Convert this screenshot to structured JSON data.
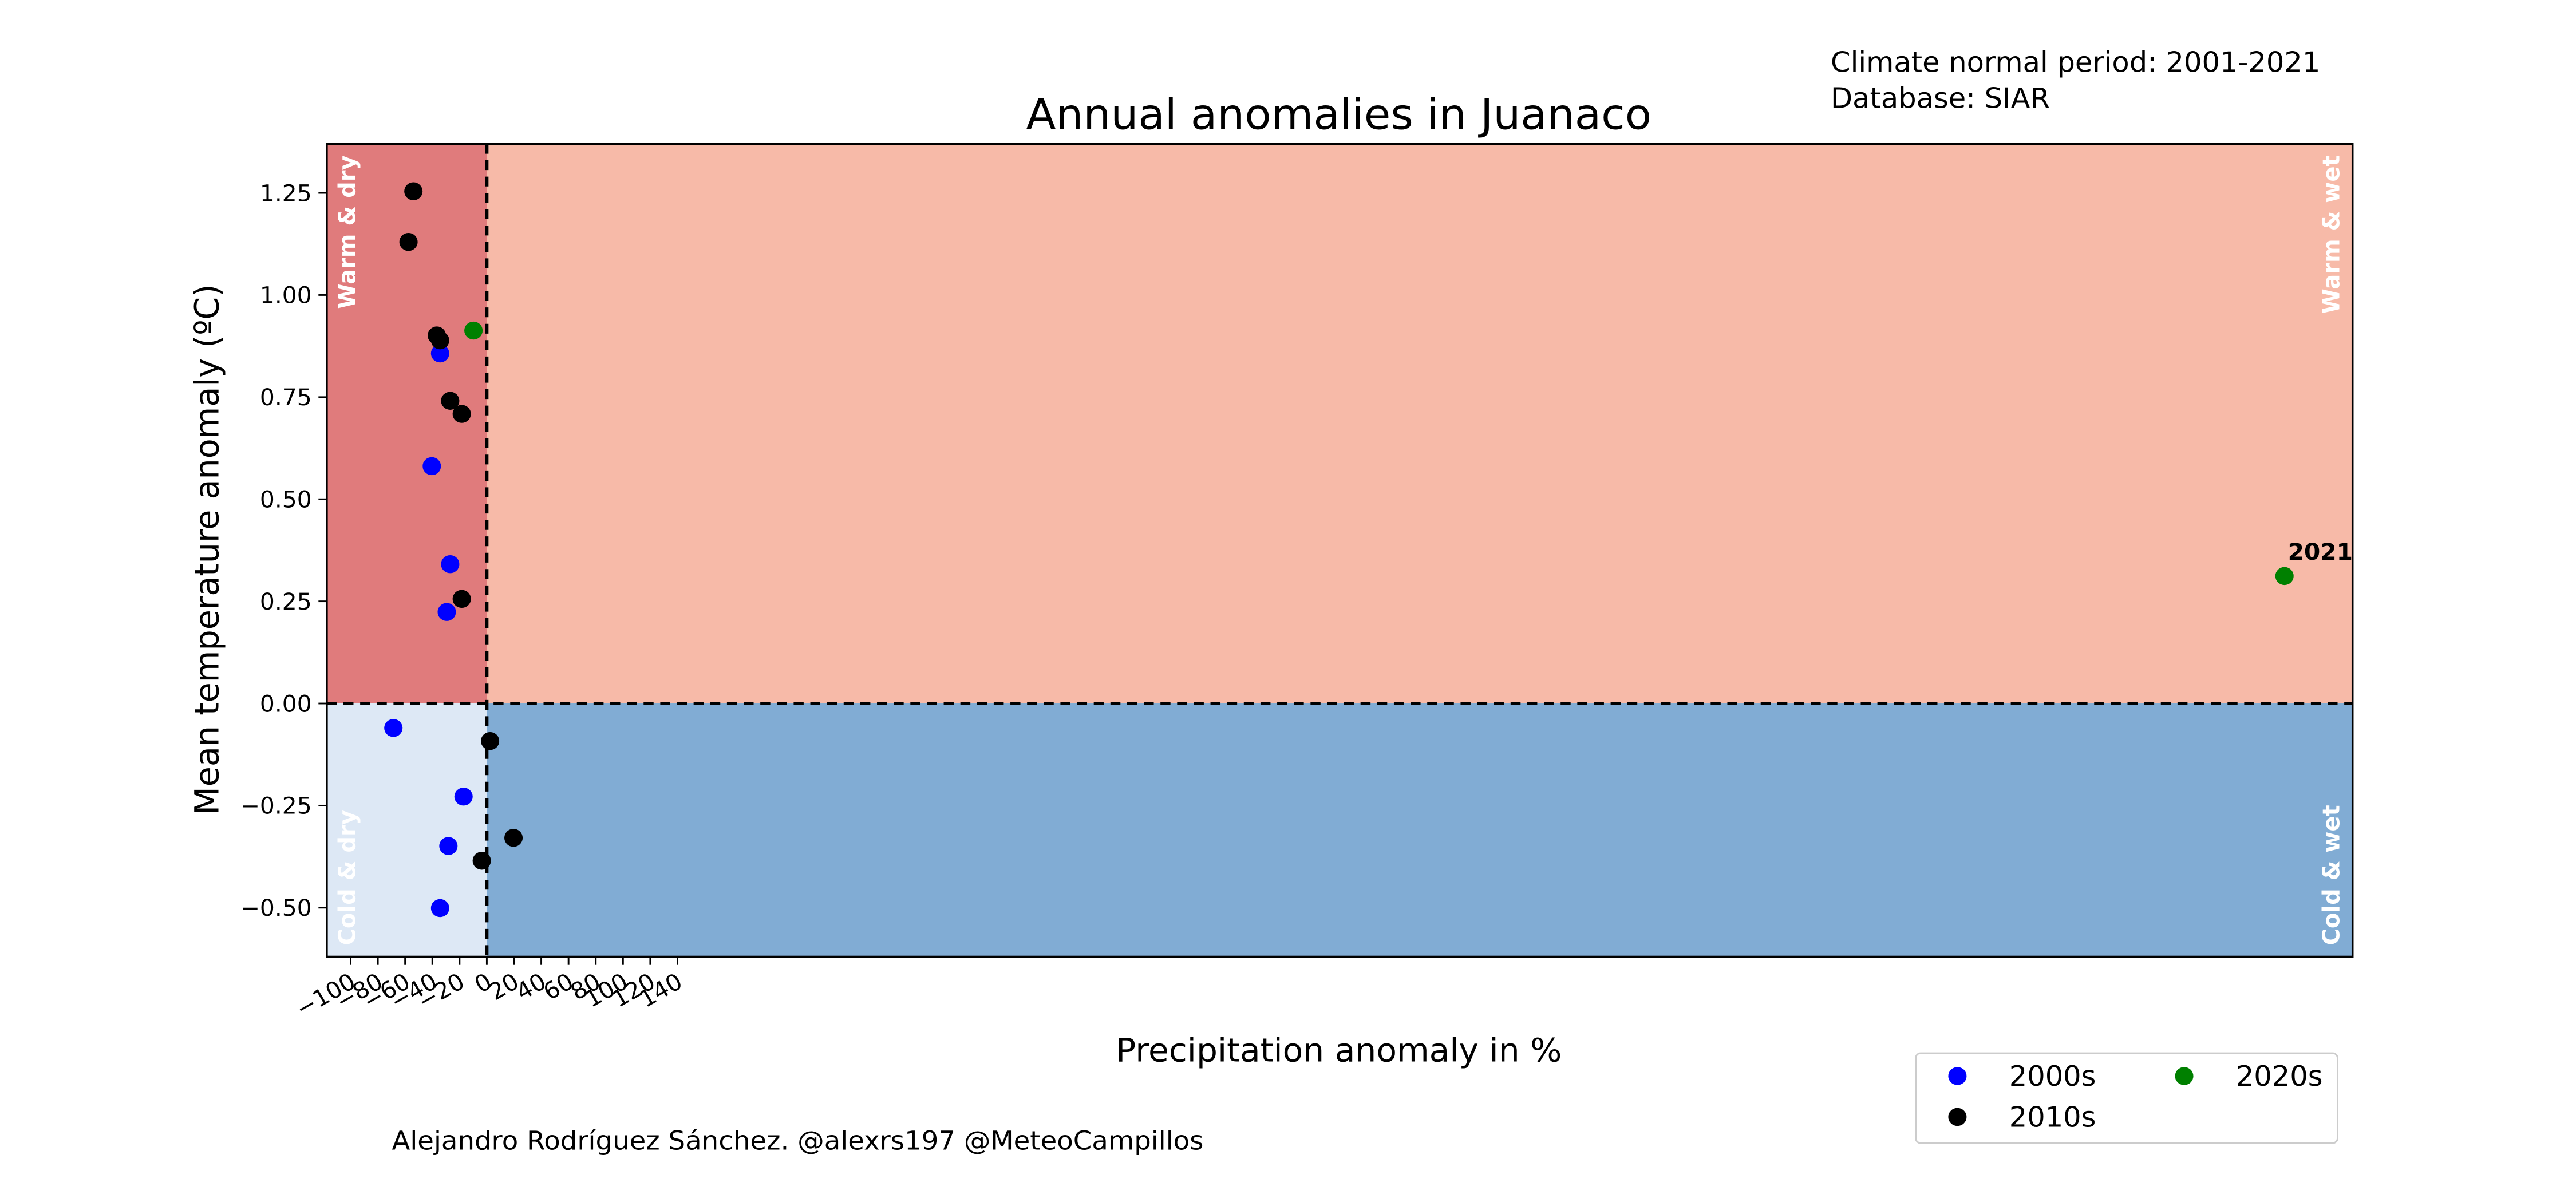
{
  "chart_data": {
    "type": "scatter",
    "title": "Annual anomalies in Juanaco",
    "info_lines": [
      "Climate normal period: 2001-2021",
      "Database: SIAR"
    ],
    "credit": "Alejandro Rodríguez Sánchez. @alexrs197 @MeteoCampillos",
    "xlabel": "Precipitation anomaly in %",
    "ylabel": "Mean temperature anomaly (ºC)",
    "xlim": [
      -117.5,
      1370
    ],
    "ylim": [
      -0.62,
      1.37
    ],
    "xticks": [
      {
        "value": -100,
        "label": "−100"
      },
      {
        "value": -80,
        "label": "−80"
      },
      {
        "value": -60,
        "label": "−60"
      },
      {
        "value": -40,
        "label": "−40"
      },
      {
        "value": -20,
        "label": "−20"
      },
      0,
      20,
      40,
      60,
      80,
      100,
      120,
      140
    ],
    "yticks": [
      {
        "value": -0.5,
        "label": "−0.50"
      },
      {
        "value": -0.25,
        "label": "−0.25"
      },
      {
        "value": 0,
        "label": "0.00"
      },
      0.25,
      {
        "value": 0.5,
        "label": "0.50"
      },
      0.75,
      {
        "value": 1,
        "label": "1.00"
      },
      1.25
    ],
    "quadrants": [
      {
        "label": "Warm & dry",
        "color": "#e07b7c"
      },
      {
        "label": "Warm & wet",
        "color": "#f7baa8"
      },
      {
        "label": "Cold & dry",
        "color": "#dde8f5"
      },
      {
        "label": "Cold & wet",
        "color": "#81acd4"
      }
    ],
    "legend": "lower right",
    "series": [
      {
        "name": "2000s",
        "color": "#0000ff",
        "x": [
          -34.3,
          -40.4,
          -26.9,
          -29.4,
          -68.6,
          -17.1,
          -28.2,
          -34.3
        ],
        "values": [
          0.857,
          0.581,
          0.341,
          0.224,
          -0.06,
          -0.228,
          -0.349,
          -0.501
        ]
      },
      {
        "name": "2010s",
        "color": "#000000",
        "x": [
          -53.9,
          -57.5,
          -36.7,
          -34.3,
          -26.9,
          -18.4,
          -18.4,
          2.4,
          19.6,
          -3.7
        ],
        "values": [
          1.254,
          1.13,
          0.901,
          0.889,
          0.741,
          0.709,
          0.256,
          -0.092,
          -0.329,
          -0.385
        ]
      },
      {
        "name": "2020s",
        "color": "#008000",
        "x": [
          -9.8,
          1320
        ],
        "values": [
          0.913,
          0.312
        ]
      }
    ],
    "annotation": "2021"
  }
}
